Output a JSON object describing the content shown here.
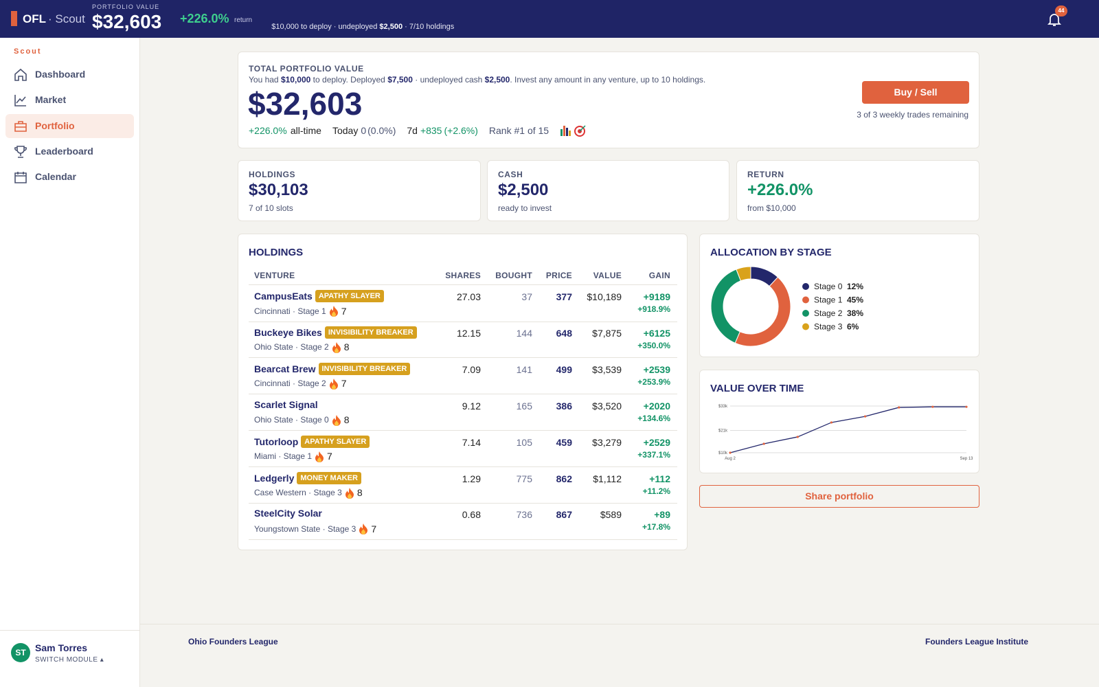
{
  "header": {
    "brand": "OFL",
    "module": "· Scout",
    "value_label": "PORTFOLIO VALUE",
    "value": "$32,603",
    "return": "+226.0%",
    "return_label": "return",
    "deploy_text": "$10,000 to deploy · undeployed ",
    "undeployed": "$2,500",
    "holdings_text": " · 7/10 holdings",
    "notifications": "44"
  },
  "sidebar": {
    "section": "Scout",
    "nav": [
      "Dashboard",
      "Market",
      "Portfolio",
      "Leaderboard",
      "Calendar"
    ],
    "active": 2,
    "user": {
      "initials": "ST",
      "name": "Sam Torres",
      "action": "SWITCH MODULE ▴"
    }
  },
  "summary": {
    "title": "TOTAL PORTFOLIO VALUE",
    "intro": [
      "You had ",
      "$10,000",
      " to deploy. Deployed ",
      "$7,500",
      " · undeployed cash ",
      "$2,500",
      ". Invest any amount in any venture, up to 10 holdings."
    ],
    "value": "$32,603",
    "all_time": "+226.0%",
    "all_time_label": "all-time",
    "today_label": "Today",
    "today": "0",
    "today_pct": "(0.0%)",
    "week_label": "7d",
    "week": "+835",
    "week_pct": "(+2.6%)",
    "rank": "Rank #1 of 15",
    "button": "Buy / Sell",
    "trades": "3 of 3 weekly trades remaining"
  },
  "stats": [
    {
      "label": "HOLDINGS",
      "value": "$30,103",
      "note": "7 of 10 slots"
    },
    {
      "label": "CASH",
      "value": "$2,500",
      "note": "ready to invest"
    },
    {
      "label": "RETURN",
      "value": "+226.0%",
      "note": "from $10,000"
    }
  ],
  "holdings": {
    "title": "HOLDINGS",
    "columns": [
      "VENTURE",
      "SHARES",
      "BOUGHT",
      "PRICE",
      "VALUE",
      "GAIN"
    ],
    "rows": [
      {
        "name": "CampusEats",
        "badge": "APATHY SLAYER",
        "place": "Cincinnati · Stage 1",
        "streak": "7",
        "shares": "27.03",
        "bought": "37",
        "price": "377",
        "value": "$10,189",
        "gain": "+9189",
        "gain_pct": "+918.9%"
      },
      {
        "name": "Buckeye Bikes",
        "badge": "INVISIBILITY BREAKER",
        "place": "Ohio State · Stage 2",
        "streak": "8",
        "shares": "12.15",
        "bought": "144",
        "price": "648",
        "value": "$7,875",
        "gain": "+6125",
        "gain_pct": "+350.0%"
      },
      {
        "name": "Bearcat Brew",
        "badge": "INVISIBILITY BREAKER",
        "place": "Cincinnati · Stage 2",
        "streak": "7",
        "shares": "7.09",
        "bought": "141",
        "price": "499",
        "value": "$3,539",
        "gain": "+2539",
        "gain_pct": "+253.9%"
      },
      {
        "name": "Scarlet Signal",
        "place": "Ohio State · Stage 0",
        "streak": "8",
        "shares": "9.12",
        "bought": "165",
        "price": "386",
        "value": "$3,520",
        "gain": "+2020",
        "gain_pct": "+134.6%"
      },
      {
        "name": "Tutorloop",
        "badge": "APATHY SLAYER",
        "place": "Miami · Stage 1",
        "streak": "7",
        "shares": "7.14",
        "bought": "105",
        "price": "459",
        "value": "$3,279",
        "gain": "+2529",
        "gain_pct": "+337.1%"
      },
      {
        "name": "Ledgerly",
        "badge": "MONEY MAKER",
        "place": "Case Western · Stage 3",
        "streak": "8",
        "shares": "1.29",
        "bought": "775",
        "price": "862",
        "value": "$1,112",
        "gain": "+112",
        "gain_pct": "+11.2%"
      },
      {
        "name": "SteelCity Solar",
        "place": "Youngstown State · Stage 3",
        "streak": "7",
        "shares": "0.68",
        "bought": "736",
        "price": "867",
        "value": "$589",
        "gain": "+89",
        "gain_pct": "+17.8%"
      }
    ]
  },
  "share_button": "Share portfolio",
  "footer": {
    "left": "Ohio Founders League",
    "right": "Founders League Institute"
  },
  "chart_data": [
    {
      "type": "donut",
      "title": "ALLOCATION BY STAGE",
      "categories": [
        "Stage 0",
        "Stage 1",
        "Stage 2",
        "Stage 3"
      ],
      "values": [
        12,
        45,
        38,
        6
      ],
      "value_labels": [
        "12%",
        "45%",
        "38%",
        "6%"
      ],
      "colors": [
        "#23276b",
        "#e0623e",
        "#129366",
        "#d9a21b"
      ]
    },
    {
      "type": "line",
      "title": "VALUE OVER TIME",
      "categories": [
        "Aug 2",
        null,
        null,
        null,
        null,
        null,
        null,
        "Sep 13"
      ],
      "values": [
        10000,
        14400,
        17800,
        24900,
        27900,
        32300,
        32600,
        32603
      ],
      "color": "#23276b",
      "marker_color": "#e0623e",
      "ylim": [
        10000,
        33000
      ],
      "yticks": [
        {
          "value": 10000,
          "label": "$10k"
        },
        {
          "value": 21000,
          "label": "$21k"
        },
        {
          "value": 33000,
          "label": "$33k"
        }
      ],
      "grid": true
    }
  ]
}
